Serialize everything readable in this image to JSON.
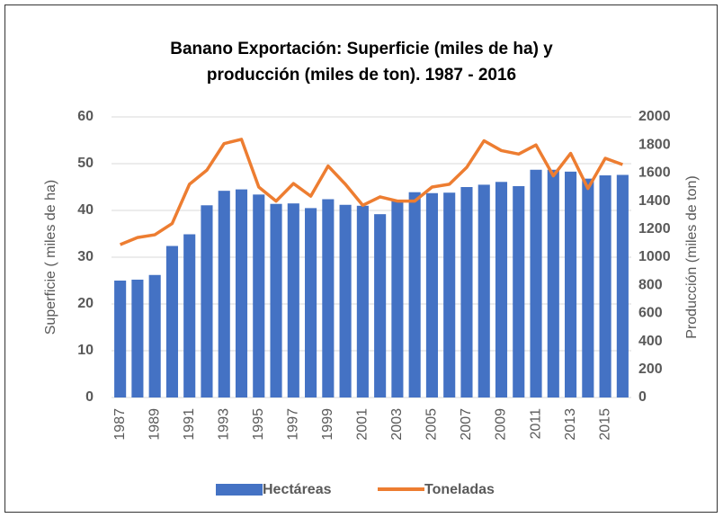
{
  "chart_data": {
    "type": "bar-line",
    "title": "Banano Exportación: Superficie (miles de ha) y producción (miles de ton). 1987 - 2016",
    "categories": [
      "1987",
      null,
      "1989",
      null,
      "1991",
      null,
      "1993",
      null,
      "1995",
      null,
      "1997",
      null,
      "1999",
      null,
      "2001",
      null,
      "2003",
      null,
      "2005",
      null,
      "2007",
      null,
      "2009",
      null,
      "2011",
      null,
      "2013",
      null,
      "2015",
      null
    ],
    "series": [
      {
        "name": "Hectáreas",
        "type": "bar",
        "color": "#4472c4",
        "values": [
          25,
          25.2,
          26.2,
          32.4,
          34.9,
          41.1,
          44.2,
          44.5,
          43.4,
          41.4,
          41.5,
          40.5,
          42.4,
          41.2,
          41,
          39.2,
          42,
          43.9,
          43.7,
          43.8,
          45,
          45.5,
          46.1,
          45.2,
          48.7,
          48.7,
          48.3,
          46.8,
          47.5,
          47.6
        ]
      },
      {
        "name": "Toneladas",
        "type": "line",
        "axis": "y2",
        "color": "#ed7d31",
        "values": [
          1090,
          1140,
          1160,
          1240,
          1520,
          1620,
          1810,
          1840,
          1500,
          1400,
          1525,
          1435,
          1650,
          1520,
          1370,
          1430,
          1400,
          1400,
          1500,
          1520,
          1640,
          1830,
          1760,
          1735,
          1800,
          1580,
          1740,
          1490,
          1705,
          1660
        ]
      }
    ],
    "ylabel": "Superficie ( miles de ha)",
    "y2label": "Producción (miles de ton)",
    "ylim": [
      0,
      60
    ],
    "yticks": [
      0,
      10,
      20,
      30,
      40,
      50,
      60
    ],
    "y2lim": [
      0,
      2000
    ],
    "y2ticks": [
      0,
      200,
      400,
      600,
      800,
      1000,
      1200,
      1400,
      1600,
      1800,
      2000
    ],
    "grid": true,
    "legend": "bottom"
  }
}
